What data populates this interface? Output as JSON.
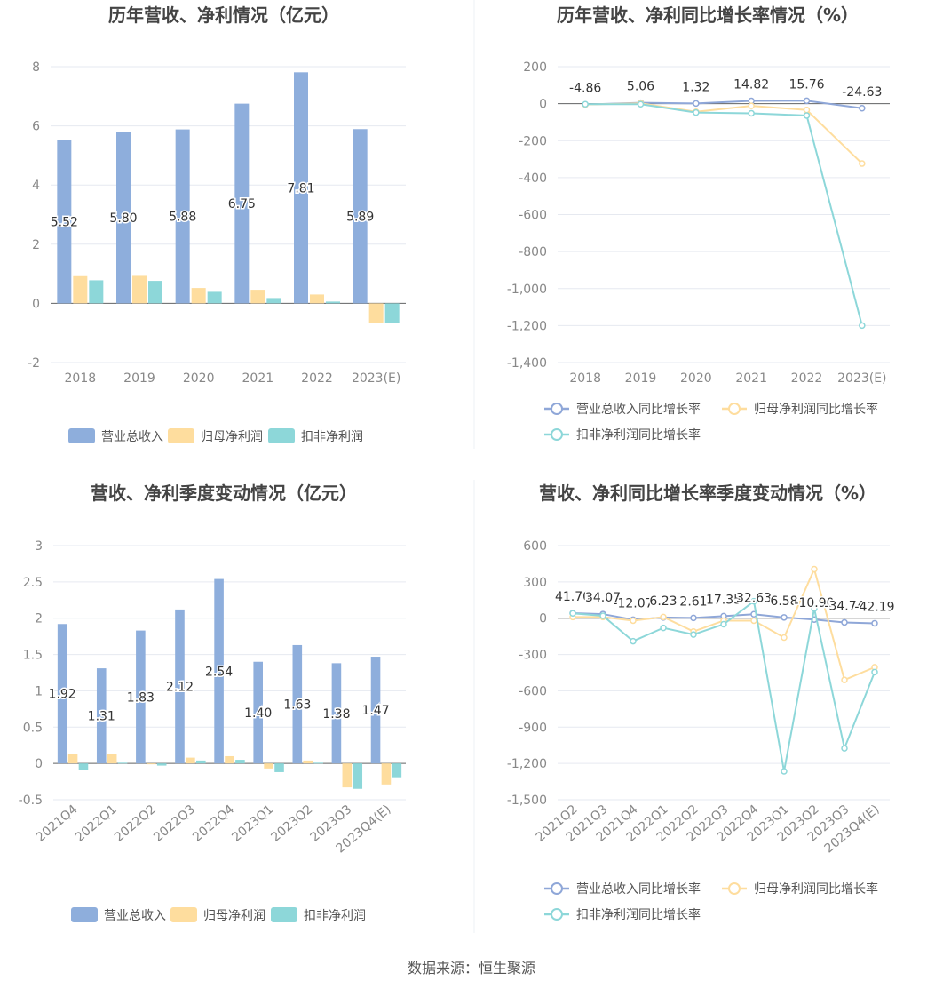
{
  "footer": {
    "source": "数据来源：恒生聚源"
  },
  "colors": {
    "revenue": "#8eaedc",
    "net_profit": "#fedd9e",
    "deducted_profit": "#8dd7d9",
    "revenue_line": "#8fa7d8",
    "grid": "#e6e9f0",
    "axis_text": "#888888",
    "title": "#444444"
  },
  "chart_data": [
    {
      "type": "bar",
      "title": "历年营收、净利情况（亿元）",
      "categories": [
        "2018",
        "2019",
        "2020",
        "2021",
        "2022",
        "2023(E)"
      ],
      "ylim": [
        -2,
        8
      ],
      "yticks": [
        "-2",
        "0",
        "2",
        "4",
        "6",
        "8"
      ],
      "yticks_values": [
        -2,
        0,
        2,
        4,
        6,
        8
      ],
      "series": [
        {
          "name": "营业总收入",
          "values": [
            5.52,
            5.8,
            5.88,
            6.75,
            7.81,
            5.89
          ],
          "labels": [
            "5.52",
            "5.80",
            "5.88",
            "6.75",
            "7.81",
            "5.89"
          ]
        },
        {
          "name": "归母净利润",
          "values": [
            0.92,
            0.93,
            0.52,
            0.46,
            0.3,
            -0.66
          ]
        },
        {
          "name": "扣非净利润",
          "values": [
            0.78,
            0.76,
            0.39,
            0.18,
            0.06,
            -0.66
          ]
        }
      ],
      "legend_position": "bottom",
      "grid": true
    },
    {
      "type": "line",
      "title": "历年营收、净利同比增长率情况（%）",
      "categories": [
        "2018",
        "2019",
        "2020",
        "2021",
        "2022",
        "2023(E)"
      ],
      "ylim": [
        -1400,
        200
      ],
      "yticks": [
        "-1,400",
        "-1,200",
        "-1,000",
        "-800",
        "-600",
        "-400",
        "-200",
        "0",
        "200"
      ],
      "yticks_values": [
        -1400,
        -1200,
        -1000,
        -800,
        -600,
        -400,
        -200,
        0,
        200
      ],
      "series": [
        {
          "name": "营业总收入同比增长率",
          "values": [
            -4.86,
            5.06,
            1.32,
            14.82,
            15.76,
            -24.63
          ],
          "labels": [
            "-4.86",
            "5.06",
            "1.32",
            "14.82",
            "15.76",
            "-24.63"
          ]
        },
        {
          "name": "归母净利润同比增长率",
          "values": [
            -5,
            2,
            -44,
            -12,
            -34,
            -324
          ]
        },
        {
          "name": "扣非净利润同比增长率",
          "values": [
            -3,
            -3,
            -48,
            -52,
            -64,
            -1200
          ]
        }
      ],
      "legend_position": "bottom",
      "grid": true
    },
    {
      "type": "bar",
      "title": "营收、净利季度变动情况（亿元）",
      "categories": [
        "2021Q4",
        "2022Q1",
        "2022Q2",
        "2022Q3",
        "2022Q4",
        "2023Q1",
        "2023Q2",
        "2023Q3",
        "2023Q4(E)"
      ],
      "ylim": [
        -0.5,
        3
      ],
      "yticks": [
        "-0.5",
        "0",
        "0.5",
        "1",
        "1.5",
        "2",
        "2.5",
        "3"
      ],
      "yticks_values": [
        -0.5,
        0,
        0.5,
        1,
        1.5,
        2,
        2.5,
        3
      ],
      "series": [
        {
          "name": "营业总收入",
          "values": [
            1.92,
            1.31,
            1.83,
            2.12,
            2.54,
            1.4,
            1.63,
            1.38,
            1.47
          ],
          "labels": [
            "1.92",
            "1.31",
            "1.83",
            "2.12",
            "2.54",
            "1.40",
            "1.63",
            "1.38",
            "1.47"
          ]
        },
        {
          "name": "归母净利润",
          "values": [
            0.13,
            0.13,
            -0.01,
            0.08,
            0.1,
            -0.07,
            0.04,
            -0.33,
            -0.29
          ]
        },
        {
          "name": "扣非净利润",
          "values": [
            -0.09,
            0.01,
            -0.03,
            0.04,
            0.05,
            -0.12,
            0.01,
            -0.35,
            -0.19
          ]
        }
      ],
      "legend_position": "bottom",
      "grid": true
    },
    {
      "type": "line",
      "title": "营收、净利同比增长率季度变动情况（%）",
      "categories": [
        "2021Q2",
        "2021Q3",
        "2021Q4",
        "2022Q1",
        "2022Q2",
        "2022Q3",
        "2022Q4",
        "2023Q1",
        "2023Q2",
        "2023Q3",
        "2023Q4(E)"
      ],
      "ylim": [
        -1500,
        600
      ],
      "yticks": [
        "-1,500",
        "-1,200",
        "-900",
        "-600",
        "-300",
        "0",
        "300",
        "600"
      ],
      "yticks_values": [
        -1500,
        -1200,
        -900,
        -600,
        -300,
        0,
        300,
        600
      ],
      "series": [
        {
          "name": "营业总收入同比增长率",
          "values": [
            41.7,
            34.07,
            -12.07,
            6.23,
            2.61,
            17.35,
            32.63,
            6.58,
            -10.9,
            -34.74,
            -42.19
          ],
          "labels": [
            "41.70",
            "34.07",
            "-12.07",
            "6.23",
            "2.61",
            "17.35",
            "32.63",
            "6.58",
            "-10.90",
            "-34.74",
            "-42.19"
          ]
        },
        {
          "name": "归母净利润同比增长率",
          "values": [
            10,
            10,
            -20,
            10,
            -110,
            -20,
            -20,
            -160,
            405,
            -510,
            -405
          ]
        },
        {
          "name": "扣非净利润同比增长率",
          "values": [
            40,
            20,
            -190,
            -80,
            -135,
            -50,
            140,
            -1265,
            80,
            -1075,
            -445
          ]
        }
      ],
      "legend_position": "bottom",
      "grid": true
    }
  ]
}
